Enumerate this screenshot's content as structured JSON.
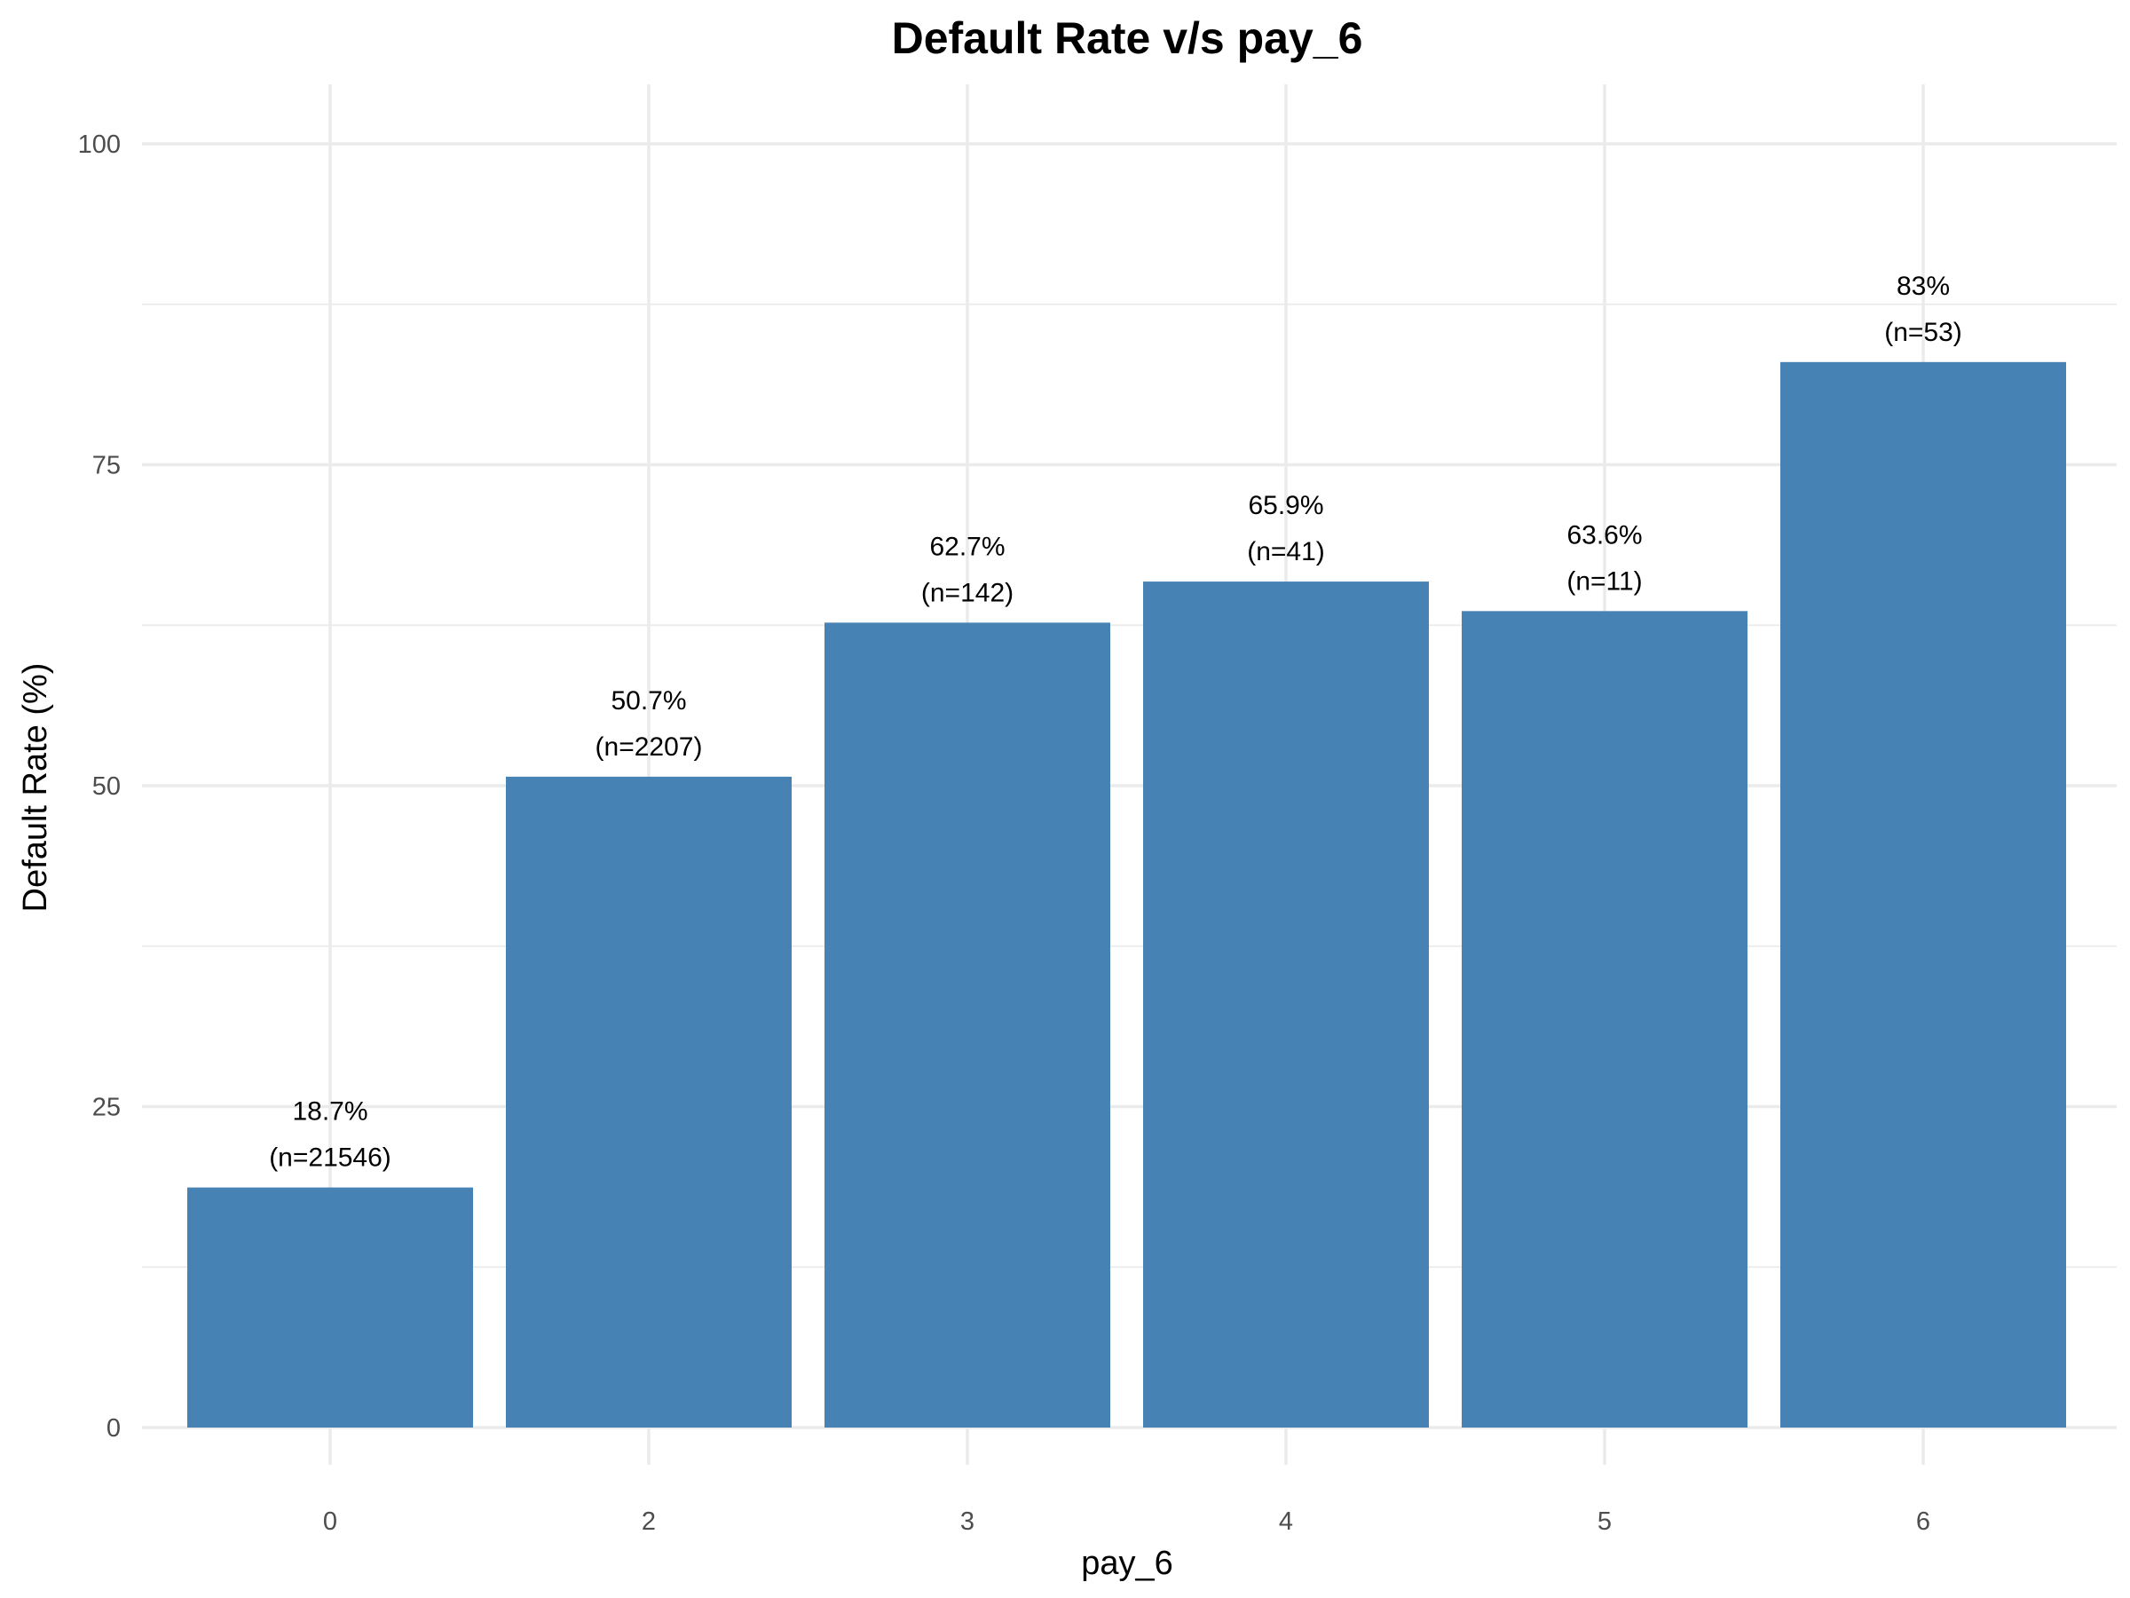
{
  "chart_data": {
    "type": "bar",
    "title": "Default Rate v/s pay_6",
    "xlabel": "pay_6",
    "ylabel": "Default Rate (%)",
    "categories": [
      "0",
      "2",
      "3",
      "4",
      "5",
      "6"
    ],
    "values": [
      18.7,
      50.7,
      62.7,
      65.9,
      63.6,
      83
    ],
    "value_labels": [
      "18.7%",
      "50.7%",
      "62.7%",
      "65.9%",
      "63.6%",
      "83%"
    ],
    "count_labels": [
      "(n=21546)",
      "(n=2207)",
      "(n=142)",
      "(n=41)",
      "(n=11)",
      "(n=53)"
    ],
    "ylim": [
      0,
      100
    ],
    "yticks": [
      0,
      25,
      50,
      75,
      100
    ],
    "grid": true,
    "legend": "none",
    "bar_color": "#4682b4"
  }
}
